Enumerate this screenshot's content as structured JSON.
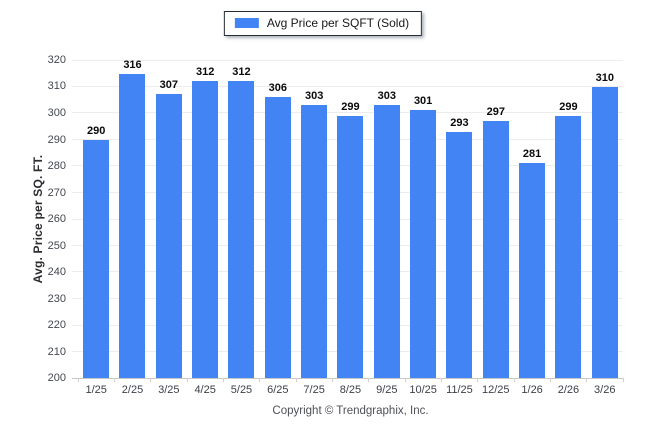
{
  "accent_color": "#4284F4",
  "legend": {
    "label": "Avg Price per SQFT (Sold)",
    "swatch_color": "#4284F4"
  },
  "footer": {
    "text": "Copyright © Trendgraphix, Inc."
  },
  "chart_data": {
    "type": "bar",
    "title": "",
    "series_name": "Avg Price per SQFT (Sold)",
    "categories": [
      "1/25",
      "2/25",
      "3/25",
      "4/25",
      "5/25",
      "6/25",
      "7/25",
      "8/25",
      "9/25",
      "10/25",
      "11/25",
      "12/25",
      "1/26",
      "2/26",
      "3/26"
    ],
    "values": [
      290,
      316,
      307,
      312,
      312,
      306,
      303,
      299,
      303,
      301,
      293,
      297,
      281,
      299,
      310
    ],
    "xlabel": "",
    "ylabel": "Avg. Price per SQ. FT.",
    "ylim": [
      200,
      320
    ],
    "ytick_step": 10,
    "grid": true,
    "legend_position": "top-center",
    "bar_color": "#4284F4",
    "value_label_color": "#0a0a0a",
    "gridline_color": "#ededed"
  }
}
